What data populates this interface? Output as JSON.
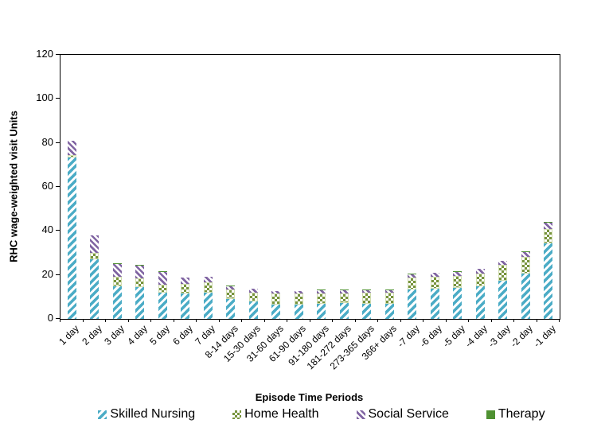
{
  "chart": {
    "y_axis_title": "RHC wage-weighted visit Units",
    "x_axis_title": "Episode Time Periods",
    "colors": {
      "skilled_nursing": "#4BACC6",
      "home_health": "#77933C",
      "social_service": "#8064A2",
      "therapy": "#4F9132",
      "axis": "#000000",
      "background": "#FFFFFF"
    }
  },
  "chart_data": {
    "type": "bar",
    "stacked": true,
    "grid": false,
    "legend_position": "bottom",
    "title": "",
    "xlabel": "Episode Time Periods",
    "ylabel": "RHC wage-weighted visit Units",
    "ylim": [
      0,
      120
    ],
    "y_ticks": [
      0,
      20,
      40,
      60,
      80,
      100,
      120
    ],
    "categories": [
      "1 day",
      "2 day",
      "3 day",
      "4 day",
      "5 day",
      "6 day",
      "7 day",
      "8-14 days",
      "15-30 days",
      "31-60 days",
      "61-90 days",
      "91-180 days",
      "181-272 days",
      "273-365 days",
      "366+ days",
      "-7 day",
      "-6 day",
      "-5 day",
      "-4 day",
      "-3 day",
      "-2 day",
      "-1 day"
    ],
    "series": [
      {
        "name": "Skilled Nursing",
        "pattern": "diagonal-up",
        "color": "#4BACC6",
        "values": [
          73.5,
          27,
          15,
          14.5,
          12,
          11.5,
          12,
          9,
          7.8,
          6.6,
          6.6,
          7,
          7.2,
          7,
          7,
          13.3,
          13.8,
          14,
          15,
          17.5,
          20.5,
          34.5
        ]
      },
      {
        "name": "Home Health",
        "pattern": "checker",
        "color": "#77933C",
        "values": [
          0.8,
          3,
          4.3,
          3.8,
          3.7,
          4.5,
          4.5,
          4.3,
          4.2,
          4.9,
          4.9,
          4.7,
          4.5,
          4.8,
          5,
          5.4,
          5.5,
          5.5,
          5.6,
          7,
          7.8,
          6.5
        ]
      },
      {
        "name": "Social Service",
        "pattern": "diagonal-down",
        "color": "#8064A2",
        "values": [
          6.5,
          7.8,
          5.8,
          6,
          5.8,
          2.7,
          2.6,
          1.6,
          1.6,
          1,
          1,
          1.4,
          1.4,
          1.3,
          1.1,
          1.6,
          1.5,
          2,
          2.1,
          1.8,
          2.2,
          2.8
        ]
      },
      {
        "name": "Therapy",
        "pattern": "solid",
        "color": "#4F9132",
        "values": [
          0.2,
          0.2,
          0.2,
          0.2,
          0.2,
          0.2,
          0.2,
          0.2,
          0.2,
          0.2,
          0.2,
          0.2,
          0.2,
          0.2,
          0.2,
          0.2,
          0.2,
          0.2,
          0.2,
          0.2,
          0.2,
          0.2
        ]
      }
    ]
  }
}
